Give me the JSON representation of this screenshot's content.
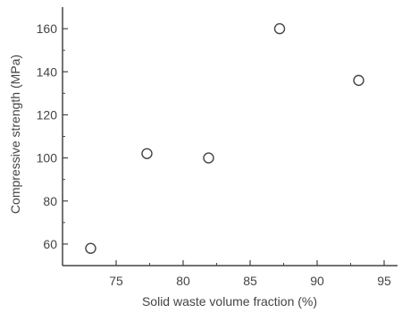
{
  "chart_data": {
    "type": "scatter",
    "xlabel": "Solid waste volume fraction (%)",
    "ylabel": "Compressive strength (MPa)",
    "xlim": [
      71,
      96
    ],
    "ylim": [
      50,
      170
    ],
    "xticks": [
      75,
      80,
      85,
      90,
      95
    ],
    "yticks": [
      60,
      80,
      100,
      120,
      140,
      160
    ],
    "xtick_labels": [
      "75",
      "80",
      "85",
      "90",
      "95"
    ],
    "ytick_labels": [
      "60",
      "80",
      "100",
      "120",
      "140",
      "160"
    ],
    "grid": false,
    "marker": "open-circle",
    "series": [
      {
        "x": [
          73.1,
          77.3,
          81.9,
          87.2,
          93.1
        ],
        "y": [
          58,
          102,
          100,
          160,
          136
        ]
      }
    ],
    "colors": {
      "axis": "#444444",
      "marker": "#444444"
    }
  }
}
